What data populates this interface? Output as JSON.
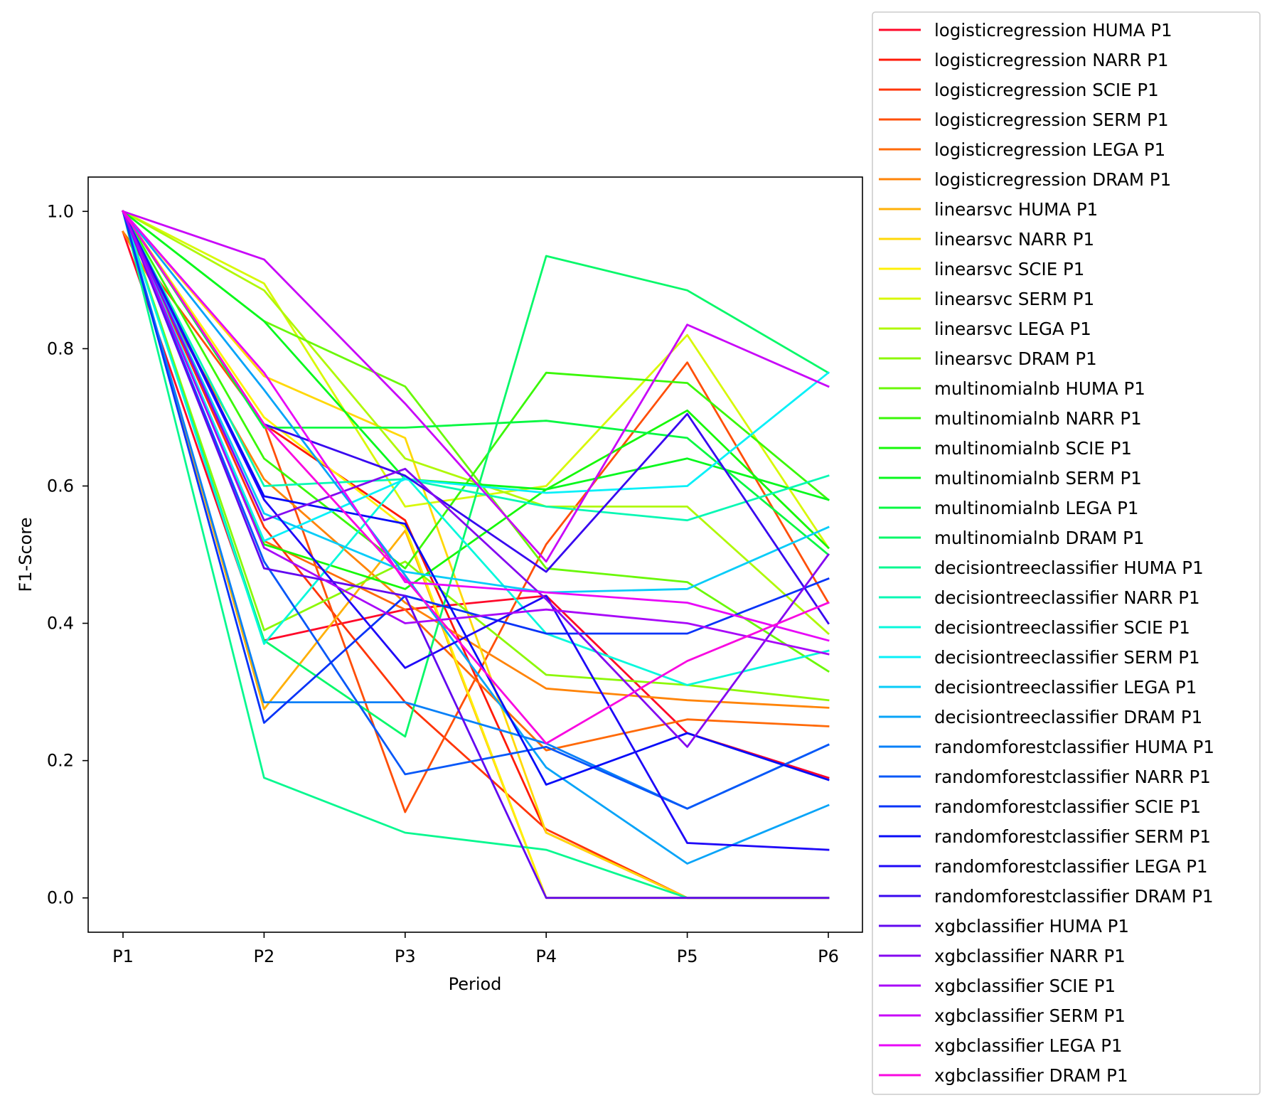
{
  "chart_data": {
    "type": "line",
    "title": "",
    "xlabel": "Period",
    "ylabel": "F1-Score",
    "categories": [
      "P1",
      "P2",
      "P3",
      "P4",
      "P5",
      "P6"
    ],
    "ylim": [
      -0.05,
      1.05
    ],
    "yticks": [
      0.0,
      0.2,
      0.4,
      0.6,
      0.8,
      1.0
    ],
    "ytick_labels": [
      "0.0",
      "0.2",
      "0.4",
      "0.6",
      "0.8",
      "1.0"
    ],
    "grid": false,
    "legend_position": "outside-right",
    "series": [
      {
        "name": "logisticregression HUMA P1",
        "color": "#ff0829",
        "values": [
          0.97,
          0.375,
          0.42,
          0.44,
          0.24,
          0.175
        ]
      },
      {
        "name": "logisticregression NARR P1",
        "color": "#ff1a08",
        "values": [
          1.0,
          0.69,
          0.55,
          0.095,
          0.0,
          0.0
        ]
      },
      {
        "name": "logisticregression SCIE P1",
        "color": "#ff3508",
        "values": [
          1.0,
          0.54,
          0.285,
          0.1,
          0.0,
          0.0
        ]
      },
      {
        "name": "logisticregression SERM P1",
        "color": "#ff4f08",
        "values": [
          0.97,
          0.69,
          0.125,
          0.515,
          0.78,
          0.43
        ]
      },
      {
        "name": "logisticregression LEGA P1",
        "color": "#ff6a08",
        "values": [
          1.0,
          0.52,
          0.42,
          0.215,
          0.26,
          0.25
        ]
      },
      {
        "name": "logisticregression DRAM P1",
        "color": "#ff8408",
        "values": [
          0.97,
          0.61,
          0.43,
          0.305,
          0.288,
          0.277
        ]
      },
      {
        "name": "linearsvc HUMA P1",
        "color": "#ffb008",
        "values": [
          1.0,
          0.275,
          0.535,
          0.0,
          0.0,
          0.0
        ]
      },
      {
        "name": "linearsvc NARR P1",
        "color": "#ffd808",
        "values": [
          1.0,
          0.76,
          0.67,
          0.095,
          0.0,
          0.0
        ]
      },
      {
        "name": "linearsvc SCIE P1",
        "color": "#fff008",
        "values": [
          1.0,
          0.7,
          0.54,
          0.0,
          0.0,
          0.0
        ]
      },
      {
        "name": "linearsvc SERM P1",
        "color": "#d8f808",
        "values": [
          1.0,
          0.895,
          0.57,
          0.6,
          0.82,
          0.51
        ]
      },
      {
        "name": "linearsvc LEGA P1",
        "color": "#b0f808",
        "values": [
          1.0,
          0.885,
          0.64,
          0.57,
          0.57,
          0.385
        ]
      },
      {
        "name": "linearsvc DRAM P1",
        "color": "#8cf808",
        "values": [
          1.0,
          0.39,
          0.49,
          0.325,
          0.31,
          0.288
        ]
      },
      {
        "name": "multinomialnb HUMA P1",
        "color": "#6af808",
        "values": [
          1.0,
          0.84,
          0.745,
          0.48,
          0.46,
          0.33
        ]
      },
      {
        "name": "multinomialnb NARR P1",
        "color": "#3af808",
        "values": [
          1.0,
          0.64,
          0.48,
          0.765,
          0.75,
          0.58
        ]
      },
      {
        "name": "multinomialnb SCIE P1",
        "color": "#16f808",
        "values": [
          1.0,
          0.515,
          0.45,
          0.595,
          0.71,
          0.51
        ]
      },
      {
        "name": "multinomialnb SERM P1",
        "color": "#08f81e",
        "values": [
          1.0,
          0.84,
          0.61,
          0.595,
          0.64,
          0.58
        ]
      },
      {
        "name": "multinomialnb LEGA P1",
        "color": "#08f842",
        "values": [
          1.0,
          0.685,
          0.685,
          0.695,
          0.67,
          0.5
        ]
      },
      {
        "name": "multinomialnb DRAM P1",
        "color": "#08f86a",
        "values": [
          1.0,
          0.375,
          0.235,
          0.935,
          0.885,
          0.765
        ]
      },
      {
        "name": "decisiontreeclassifier HUMA P1",
        "color": "#08f890",
        "values": [
          1.0,
          0.175,
          0.095,
          0.07,
          0.0,
          0.0
        ]
      },
      {
        "name": "decisiontreeclassifier NARR P1",
        "color": "#08f8b4",
        "values": [
          1.0,
          0.6,
          0.61,
          0.57,
          0.55,
          0.615
        ]
      },
      {
        "name": "decisiontreeclassifier SCIE P1",
        "color": "#08f8dc",
        "values": [
          1.0,
          0.37,
          0.615,
          0.385,
          0.31,
          0.36
        ]
      },
      {
        "name": "decisiontreeclassifier SERM P1",
        "color": "#08f0f8",
        "values": [
          1.0,
          0.52,
          0.61,
          0.59,
          0.6,
          0.765
        ]
      },
      {
        "name": "decisiontreeclassifier LEGA P1",
        "color": "#08ccf8",
        "values": [
          1.0,
          0.56,
          0.475,
          0.445,
          0.45,
          0.54
        ]
      },
      {
        "name": "decisiontreeclassifier DRAM P1",
        "color": "#08a4f8",
        "values": [
          1.0,
          0.74,
          0.47,
          0.19,
          0.05,
          0.135
        ]
      },
      {
        "name": "randomforestclassifier HUMA P1",
        "color": "#0880f8",
        "values": [
          1.0,
          0.285,
          0.285,
          0.225,
          0.13,
          0.223
        ]
      },
      {
        "name": "randomforestclassifier NARR P1",
        "color": "#0858f8",
        "values": [
          1.0,
          0.49,
          0.18,
          0.22,
          0.13,
          0.223
        ]
      },
      {
        "name": "randomforestclassifier SCIE P1",
        "color": "#0834f8",
        "values": [
          1.0,
          0.255,
          0.44,
          0.385,
          0.385,
          0.465
        ]
      },
      {
        "name": "randomforestclassifier SERM P1",
        "color": "#080cf8",
        "values": [
          1.0,
          0.585,
          0.545,
          0.165,
          0.24,
          0.172
        ]
      },
      {
        "name": "randomforestclassifier LEGA P1",
        "color": "#1e08f8",
        "values": [
          1.0,
          0.58,
          0.335,
          0.44,
          0.08,
          0.07
        ]
      },
      {
        "name": "randomforestclassifier DRAM P1",
        "color": "#3808f0",
        "values": [
          1.0,
          0.69,
          0.615,
          0.475,
          0.705,
          0.4
        ]
      },
      {
        "name": "xgbclassifier HUMA P1",
        "color": "#6208f0",
        "values": [
          1.0,
          0.48,
          0.44,
          0.0,
          0.0,
          0.0
        ]
      },
      {
        "name": "xgbclassifier NARR P1",
        "color": "#8408f0",
        "values": [
          1.0,
          0.55,
          0.625,
          0.435,
          0.22,
          0.5
        ]
      },
      {
        "name": "xgbclassifier SCIE P1",
        "color": "#a808f8",
        "values": [
          1.0,
          0.51,
          0.4,
          0.42,
          0.4,
          0.355
        ]
      },
      {
        "name": "xgbclassifier SERM P1",
        "color": "#c808f8",
        "values": [
          1.0,
          0.93,
          0.72,
          0.49,
          0.835,
          0.745
        ]
      },
      {
        "name": "xgbclassifier LEGA P1",
        "color": "#e808f8",
        "values": [
          1.0,
          0.765,
          0.46,
          0.445,
          0.43,
          0.375
        ]
      },
      {
        "name": "xgbclassifier DRAM P1",
        "color": "#f808e0",
        "values": [
          1.0,
          0.69,
          0.465,
          0.225,
          0.345,
          0.43
        ]
      }
    ]
  }
}
